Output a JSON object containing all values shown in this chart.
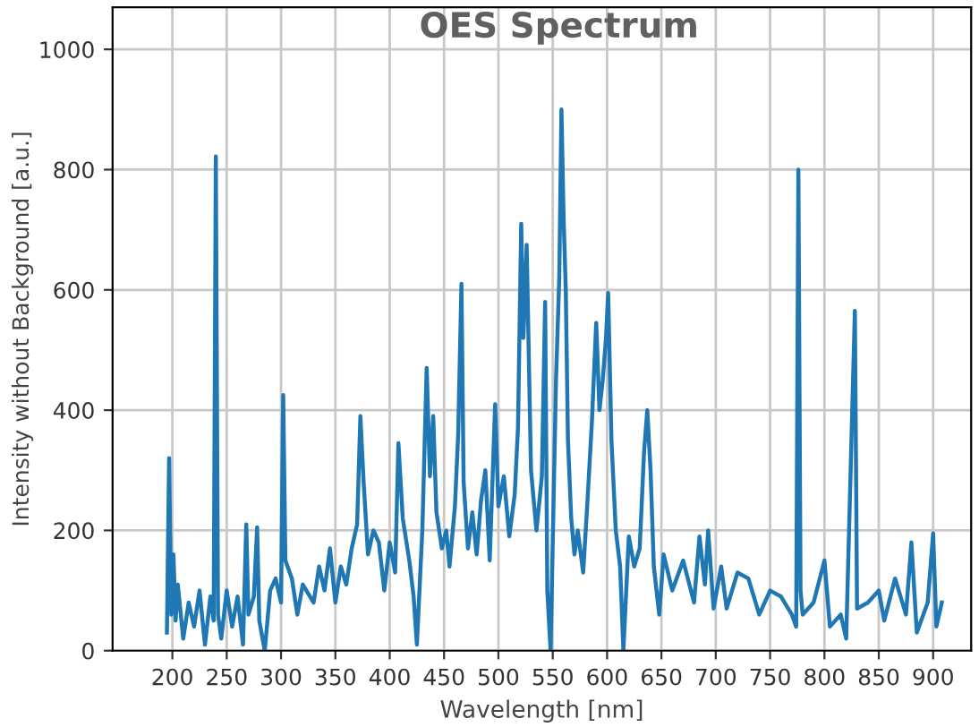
{
  "chart_data": {
    "type": "line",
    "title": "OES Spectrum",
    "xlabel": "Wavelength [nm]",
    "ylabel": "Intensity without Background [a.u.]",
    "xlim": [
      145,
      935
    ],
    "ylim": [
      0,
      1070
    ],
    "xticks": [
      200,
      250,
      300,
      350,
      400,
      450,
      500,
      550,
      600,
      650,
      700,
      750,
      800,
      850,
      900
    ],
    "yticks": [
      0,
      200,
      400,
      600,
      800,
      1000
    ],
    "grid": true,
    "marker": "none",
    "line_style": "solid",
    "series": [
      {
        "color": "#1f77b4",
        "x": [
          195,
          197,
          199,
          201,
          203,
          205,
          210,
          215,
          220,
          225,
          230,
          235,
          238,
          240,
          242,
          245,
          250,
          255,
          260,
          265,
          268,
          270,
          275,
          278,
          280,
          285,
          290,
          295,
          300,
          302,
          304,
          310,
          315,
          320,
          330,
          335,
          340,
          345,
          350,
          355,
          360,
          365,
          370,
          373,
          376,
          380,
          385,
          390,
          395,
          400,
          405,
          408,
          412,
          418,
          422,
          425,
          430,
          434,
          437,
          440,
          443,
          448,
          452,
          455,
          460,
          463,
          466,
          468,
          472,
          476,
          480,
          484,
          488,
          492,
          497,
          500,
          505,
          510,
          515,
          518,
          521,
          523,
          526,
          530,
          535,
          540,
          543,
          545,
          548,
          550,
          553,
          556,
          558,
          560,
          562,
          564,
          567,
          570,
          573,
          578,
          582,
          586,
          590,
          593,
          596,
          599,
          601,
          604,
          608,
          612,
          615,
          620,
          625,
          630,
          634,
          637,
          640,
          643,
          648,
          652,
          660,
          670,
          680,
          685,
          690,
          693,
          698,
          705,
          710,
          720,
          730,
          740,
          750,
          760,
          770,
          774,
          776,
          778,
          780,
          790,
          800,
          805,
          815,
          820,
          828,
          830,
          840,
          850,
          855,
          865,
          875,
          880,
          885,
          895,
          900,
          903,
          908
        ],
        "values": [
          30,
          320,
          60,
          160,
          50,
          110,
          20,
          80,
          40,
          100,
          10,
          90,
          50,
          822,
          60,
          20,
          100,
          40,
          90,
          10,
          210,
          60,
          90,
          205,
          50,
          0,
          100,
          120,
          80,
          425,
          150,
          120,
          60,
          110,
          80,
          140,
          100,
          170,
          80,
          140,
          110,
          170,
          210,
          390,
          280,
          160,
          200,
          180,
          100,
          180,
          130,
          345,
          220,
          150,
          90,
          10,
          200,
          470,
          290,
          390,
          230,
          170,
          200,
          140,
          240,
          360,
          610,
          280,
          170,
          230,
          160,
          250,
          300,
          150,
          410,
          240,
          290,
          190,
          260,
          370,
          710,
          520,
          675,
          300,
          200,
          290,
          580,
          100,
          0,
          180,
          450,
          620,
          900,
          720,
          600,
          350,
          220,
          160,
          200,
          130,
          250,
          380,
          545,
          400,
          450,
          520,
          595,
          350,
          200,
          140,
          0,
          190,
          140,
          170,
          330,
          400,
          300,
          140,
          60,
          160,
          100,
          150,
          80,
          190,
          110,
          200,
          70,
          140,
          70,
          130,
          120,
          60,
          100,
          90,
          60,
          40,
          800,
          100,
          60,
          80,
          150,
          40,
          60,
          20,
          565,
          70,
          80,
          100,
          50,
          120,
          60,
          180,
          30,
          80,
          195,
          40,
          80
        ]
      }
    ]
  }
}
